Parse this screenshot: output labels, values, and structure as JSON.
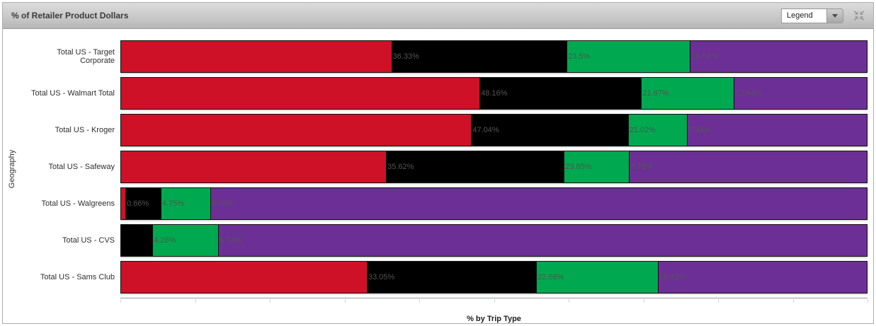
{
  "header": {
    "title": "% of Retailer Product Dollars",
    "legend_button_label": "Legend"
  },
  "axes": {
    "y_title": "Geography",
    "x_title": "% by Trip Type"
  },
  "colors": {
    "red": "#ce1126",
    "black": "#000000",
    "green": "#00a94f",
    "purple": "#6c2f96",
    "segment_label_text": "#545454"
  },
  "chart_data": {
    "type": "bar",
    "orientation": "horizontal",
    "stacked": true,
    "title": "% of Retailer Product Dollars",
    "xlabel": "% by Trip Type",
    "ylabel": "Geography",
    "xlim": [
      0,
      100
    ],
    "x_tick_step": 10,
    "legend_position": "collapsed-dropdown",
    "categories": [
      "Total US - Target Corporate",
      "Total US - Walmart Total",
      "Total US - Kroger",
      "Total US - Safeway",
      "Total US - Walgreens",
      "Total US - CVS",
      "Total US - Sams Club"
    ],
    "series": [
      {
        "name": "segment-1-red",
        "color": "#ce1126",
        "values": [
          36.33,
          48.16,
          47.04,
          35.62,
          0.66,
          0,
          33.05
        ],
        "labels": [
          "36.33%",
          "48.16%",
          "47.04%",
          "35.62%",
          "0.66%",
          null,
          "33.05%"
        ]
      },
      {
        "name": "segment-2-black",
        "color": "#000000",
        "values": [
          23.5,
          21.67,
          21.02,
          23.85,
          4.75,
          4.28,
          22.68
        ],
        "labels": [
          "23.5%",
          "21.67%",
          "21.02%",
          "23.85%",
          "4.75%",
          "4.28%",
          "22.68%"
        ]
      },
      {
        "name": "segment-3-green",
        "color": "#00a94f",
        "values": [
          16.54,
          12.44,
          7.93,
          8.75,
          6.65,
          8.78,
          16.33
        ],
        "labels": [
          "16.54%",
          "12.44%",
          "7.93%",
          "8.75%",
          "6.65%",
          "8.78%",
          "16.33%"
        ]
      },
      {
        "name": "segment-4-purple",
        "color": "#6c2f96",
        "values": [
          23.63,
          17.73,
          24.01,
          31.78,
          87.94,
          86.94,
          27.94
        ],
        "labels": [
          null,
          null,
          null,
          null,
          null,
          null,
          null
        ]
      }
    ]
  }
}
